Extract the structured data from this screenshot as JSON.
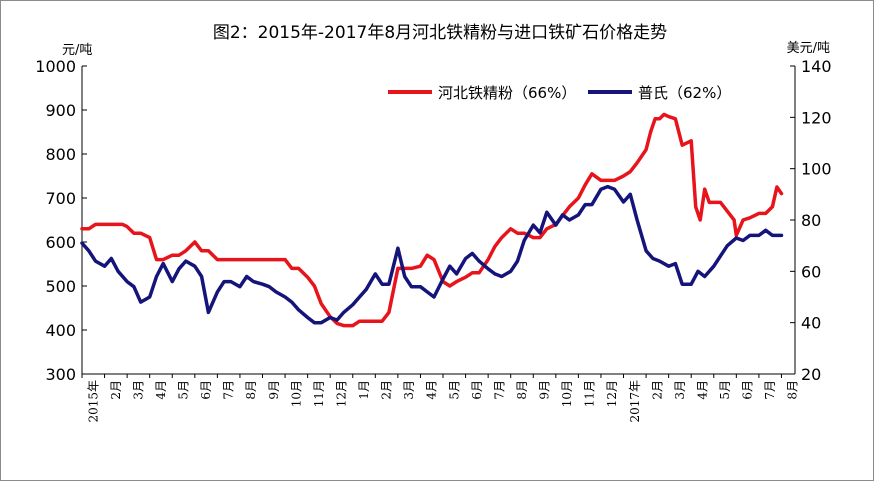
{
  "chart_data": {
    "type": "line",
    "title": "图2：2015年-2017年8月河北铁精粉与进口铁矿石价格走势",
    "ylabel_left": "元/吨",
    "ylabel_right": "美元/吨",
    "ylim_left": [
      300,
      1000
    ],
    "ylim_right": [
      20,
      140
    ],
    "yticks_left": [
      "300",
      "400",
      "500",
      "600",
      "700",
      "800",
      "900",
      "1000"
    ],
    "yticks_right": [
      "20",
      "40",
      "60",
      "80",
      "100",
      "120",
      "140"
    ],
    "x_ticks": [
      "2015年",
      "2月",
      "3月",
      "4月",
      "5月",
      "6月",
      "7月",
      "8月",
      "9月",
      "10月",
      "11月",
      "12月",
      "1月",
      "2月",
      "3月",
      "4月",
      "5月",
      "6月",
      "7月",
      "8月",
      "9月",
      "10月",
      "11月",
      "12月",
      "2017年",
      "2月",
      "3月",
      "4月",
      "5月",
      "6月",
      "7月",
      "8月"
    ],
    "legend_position": "top-right",
    "grid": false,
    "colors": {
      "hebei": "#e8141c",
      "platts": "#14147a"
    },
    "series": [
      {
        "name": "河北铁精粉（66%）",
        "axis": "left",
        "x": [
          1.0,
          1.3,
          1.6,
          2.0,
          2.4,
          2.8,
          3.0,
          3.3,
          3.6,
          4.0,
          4.3,
          4.6,
          5.0,
          5.3,
          5.6,
          6.0,
          6.3,
          6.6,
          7.0,
          7.3,
          7.6,
          8.0,
          8.5,
          9.0,
          9.5,
          10.0,
          10.3,
          10.6,
          11.0,
          11.3,
          11.6,
          12.0,
          12.3,
          12.6,
          13.0,
          13.3,
          13.6,
          14.0,
          14.3,
          14.6,
          15.0,
          15.3,
          15.6,
          16.0,
          16.3,
          16.6,
          17.0,
          17.3,
          17.6,
          18.0,
          18.3,
          18.6,
          19.0,
          19.3,
          19.6,
          20.0,
          20.3,
          20.6,
          21.0,
          21.3,
          21.6,
          22.0,
          22.3,
          22.6,
          23.0,
          23.3,
          23.6,
          24.0,
          24.3,
          24.6,
          25.0,
          25.3,
          25.6,
          26.0,
          26.2,
          26.4,
          26.6,
          26.8,
          27.0,
          27.3,
          27.6,
          28.0,
          28.2,
          28.4,
          28.6,
          28.8,
          29.0,
          29.3,
          29.6,
          29.9,
          30.0,
          30.3,
          30.6,
          31.0,
          31.3,
          31.6,
          31.8,
          32.0
        ],
        "values": [
          630,
          630,
          640,
          640,
          640,
          640,
          635,
          620,
          620,
          610,
          560,
          560,
          570,
          570,
          580,
          600,
          580,
          580,
          560,
          560,
          560,
          560,
          560,
          560,
          560,
          560,
          540,
          540,
          520,
          500,
          460,
          430,
          415,
          410,
          410,
          420,
          420,
          420,
          420,
          440,
          540,
          540,
          540,
          545,
          570,
          560,
          510,
          500,
          510,
          520,
          530,
          530,
          560,
          590,
          610,
          630,
          620,
          620,
          610,
          610,
          630,
          640,
          660,
          680,
          700,
          730,
          755,
          740,
          740,
          740,
          750,
          760,
          780,
          810,
          850,
          880,
          880,
          890,
          885,
          880,
          820,
          830,
          680,
          650,
          720,
          690,
          690,
          690,
          670,
          650,
          615,
          650,
          655,
          665,
          665,
          680,
          725,
          710
        ]
      },
      {
        "name": "普氏（62%）",
        "axis": "right",
        "x": [
          1.0,
          1.3,
          1.6,
          2.0,
          2.3,
          2.6,
          3.0,
          3.3,
          3.6,
          4.0,
          4.3,
          4.6,
          5.0,
          5.3,
          5.6,
          6.0,
          6.3,
          6.6,
          7.0,
          7.3,
          7.6,
          8.0,
          8.3,
          8.6,
          9.0,
          9.3,
          9.6,
          10.0,
          10.3,
          10.6,
          11.0,
          11.3,
          11.6,
          12.0,
          12.3,
          12.6,
          13.0,
          13.3,
          13.6,
          14.0,
          14.3,
          14.6,
          15.0,
          15.3,
          15.6,
          16.0,
          16.3,
          16.6,
          17.0,
          17.3,
          17.6,
          18.0,
          18.3,
          18.6,
          19.0,
          19.3,
          19.6,
          20.0,
          20.3,
          20.6,
          21.0,
          21.3,
          21.6,
          22.0,
          22.3,
          22.6,
          23.0,
          23.3,
          23.6,
          24.0,
          24.3,
          24.6,
          25.0,
          25.3,
          25.6,
          26.0,
          26.3,
          26.6,
          27.0,
          27.3,
          27.6,
          28.0,
          28.3,
          28.6,
          29.0,
          29.3,
          29.6,
          30.0,
          30.3,
          30.6,
          31.0,
          31.3,
          31.6,
          32.0
        ],
        "values": [
          71,
          68,
          64,
          62,
          65,
          60,
          56,
          54,
          48,
          50,
          58,
          63,
          56,
          61,
          64,
          62,
          58,
          44,
          52,
          56,
          56,
          54,
          58,
          56,
          55,
          54,
          52,
          50,
          48,
          45,
          42,
          40,
          40,
          42,
          41,
          44,
          47,
          50,
          53,
          59,
          55,
          55,
          69,
          58,
          54,
          54,
          52,
          50,
          57,
          62,
          59,
          65,
          67,
          64,
          61,
          59,
          58,
          60,
          64,
          72,
          78,
          75,
          83,
          78,
          82,
          80,
          82,
          86,
          86,
          92,
          93,
          92,
          87,
          90,
          80,
          68,
          65,
          64,
          62,
          63,
          55,
          55,
          60,
          58,
          62,
          66,
          70,
          73,
          72,
          74,
          74,
          76,
          74,
          74
        ]
      }
    ]
  }
}
